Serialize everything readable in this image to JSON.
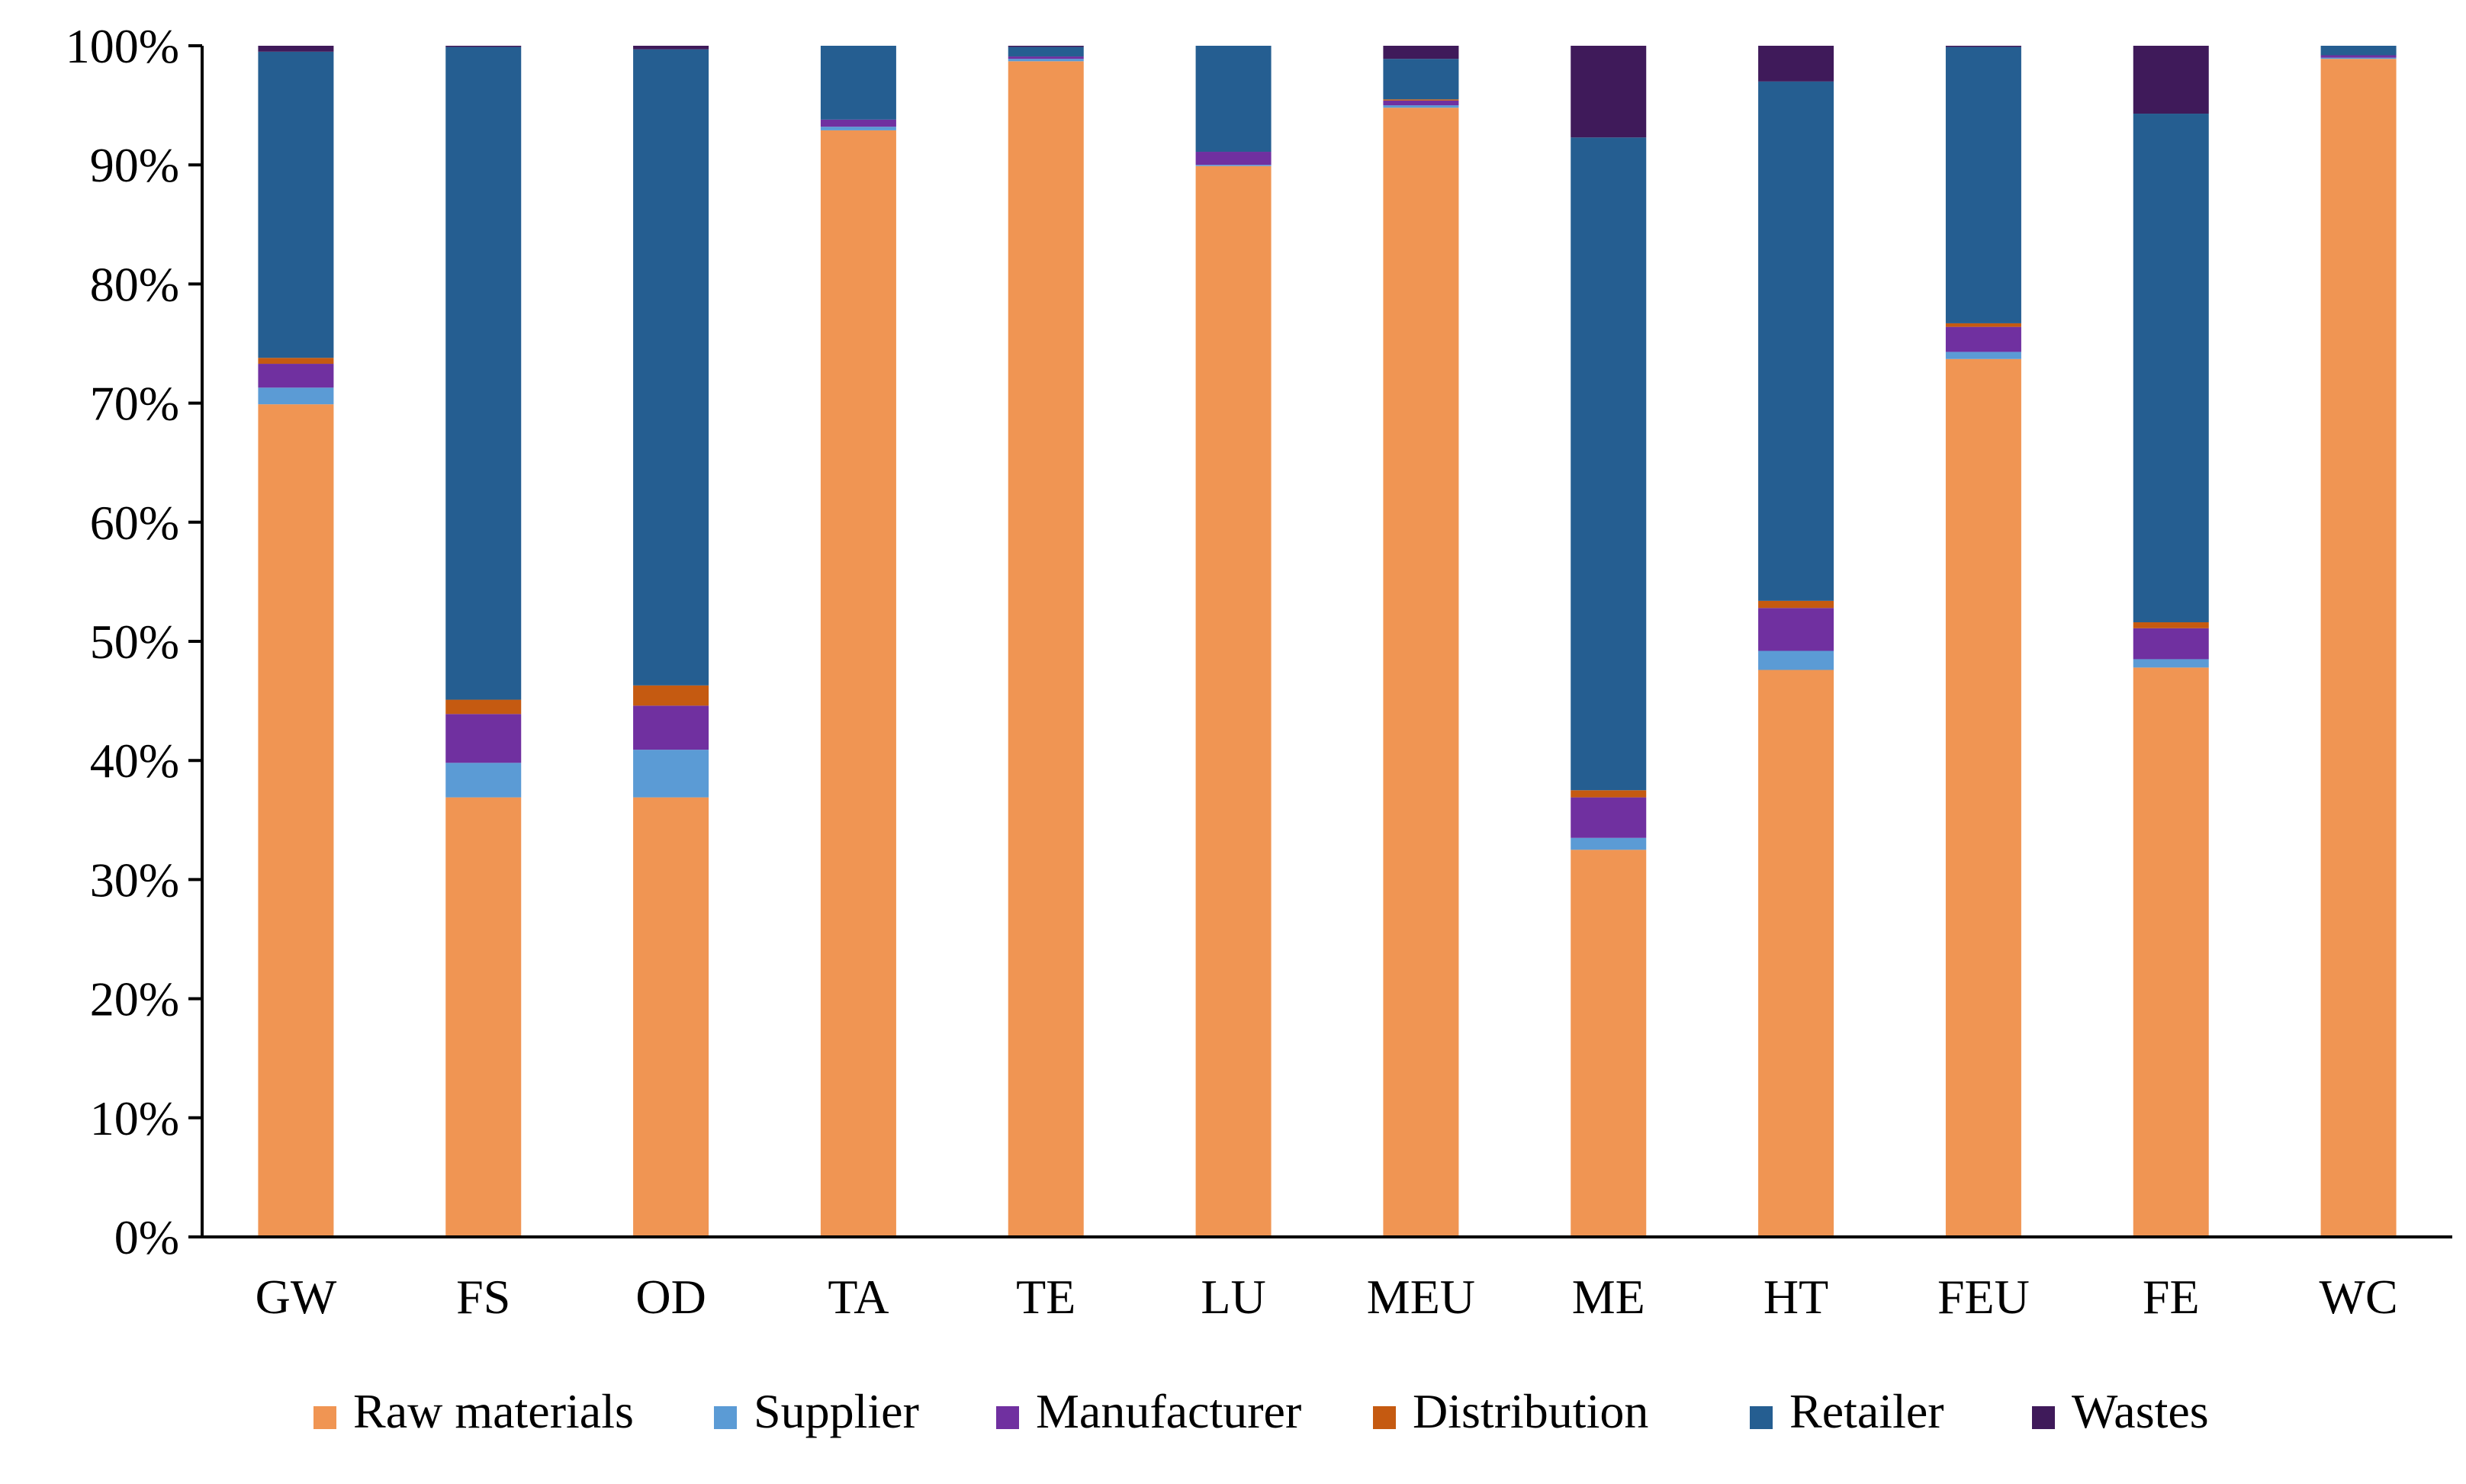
{
  "chart_data": {
    "type": "bar",
    "stacked": true,
    "percent": true,
    "title": "",
    "xlabel": "",
    "ylabel": "",
    "ylim": [
      0,
      100
    ],
    "yticks": [
      "0%",
      "10%",
      "20%",
      "30%",
      "40%",
      "50%",
      "60%",
      "70%",
      "80%",
      "90%",
      "100%"
    ],
    "grid": false,
    "legend_position": "bottom",
    "categories": [
      "GW",
      "FS",
      "OD",
      "TA",
      "TE",
      "LU",
      "MEU",
      "ME",
      "HT",
      "FEU",
      "FE",
      "WC"
    ],
    "series": [
      {
        "name": "Raw materials",
        "color": "#F09553",
        "values": [
          69.9,
          36.9,
          36.9,
          92.9,
          98.7,
          89.9,
          94.8,
          32.5,
          47.6,
          73.7,
          47.8,
          98.9
        ]
      },
      {
        "name": "Supplier",
        "color": "#5B9BD5",
        "values": [
          1.4,
          2.9,
          4.0,
          0.3,
          0.2,
          0.1,
          0.2,
          1.0,
          1.6,
          0.6,
          0.7,
          0.1
        ]
      },
      {
        "name": "Manufacturer",
        "color": "#7030A0",
        "values": [
          2.0,
          4.1,
          3.7,
          0.6,
          0.2,
          1.1,
          0.4,
          3.4,
          3.6,
          2.1,
          2.6,
          0.2
        ]
      },
      {
        "name": "Distribution",
        "color": "#C55A11",
        "values": [
          0.5,
          1.2,
          1.7,
          0.0,
          0.0,
          0.0,
          0.1,
          0.6,
          0.6,
          0.3,
          0.5,
          0.0
        ]
      },
      {
        "name": "Retailer",
        "color": "#255E91",
        "values": [
          25.7,
          54.8,
          53.4,
          6.2,
          0.8,
          8.9,
          3.4,
          54.8,
          43.6,
          23.2,
          42.7,
          0.8
        ]
      },
      {
        "name": "Wastes",
        "color": "#3F1A5A",
        "values": [
          0.5,
          0.1,
          0.3,
          0.0,
          0.1,
          0.0,
          1.1,
          7.7,
          3.0,
          0.1,
          5.7,
          0.0
        ]
      }
    ]
  }
}
